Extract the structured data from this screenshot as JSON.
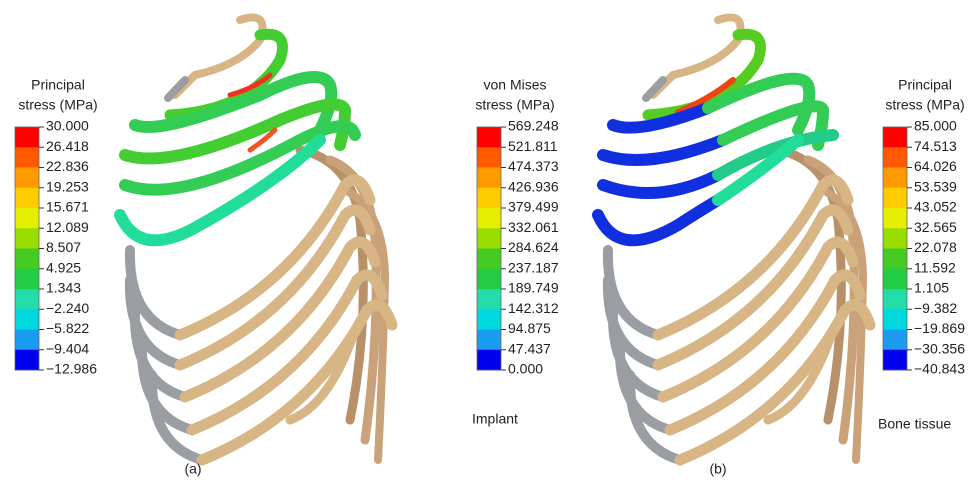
{
  "colormap": [
    "#ff0000",
    "#ff5a00",
    "#ff9900",
    "#ffcc00",
    "#e6ee00",
    "#99dd00",
    "#44cc22",
    "#22cc44",
    "#22ddaa",
    "#00d8e0",
    "#1a9cf0",
    "#0000ee"
  ],
  "legends": [
    {
      "title": [
        "Principal",
        "stress (MPa)"
      ],
      "labels": [
        "30.000",
        "26.418",
        "22.836",
        "19.253",
        "15.671",
        "12.089",
        "8.507",
        "4.925",
        "1.343",
        "−2.240",
        "−5.822",
        "−9.404",
        "−12.986"
      ]
    },
    {
      "title": [
        "von Mises",
        "stress (MPa)"
      ],
      "labels": [
        "569.248",
        "521.811",
        "474.373",
        "426.936",
        "379.499",
        "332.061",
        "284.624",
        "237.187",
        "189.749",
        "142.312",
        "94.875",
        "47.437",
        "0.000"
      ],
      "caption": "Implant"
    },
    {
      "title": [
        "Principal",
        "stress (MPa)"
      ],
      "labels": [
        "85.000",
        "74.513",
        "64.026",
        "53.539",
        "43.052",
        "32.565",
        "22.078",
        "11.592",
        "1.105",
        "−9.382",
        "−19.869",
        "−30.356",
        "−40.843"
      ],
      "caption": "Bone tissue"
    }
  ],
  "panels": [
    "(a)",
    "(b)"
  ]
}
